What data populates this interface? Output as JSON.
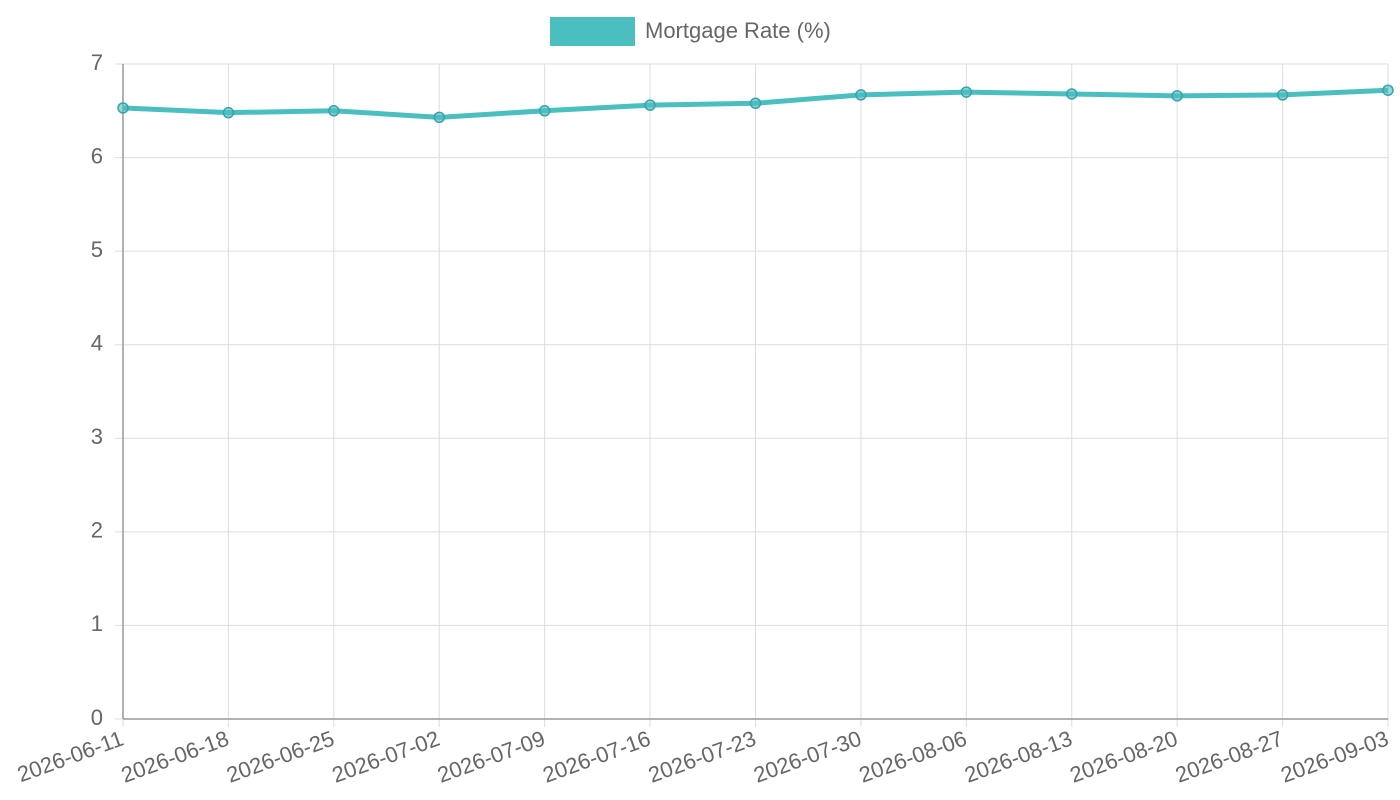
{
  "chart_data": {
    "type": "line",
    "categories": [
      "2026-06-11",
      "2026-06-18",
      "2026-06-25",
      "2026-07-02",
      "2026-07-09",
      "2026-07-16",
      "2026-07-23",
      "2026-07-30",
      "2026-08-06",
      "2026-08-13",
      "2026-08-20",
      "2026-08-27",
      "2026-09-03"
    ],
    "series": [
      {
        "name": "Mortgage Rate (%)",
        "color": "#4bbfbf",
        "values": [
          6.53,
          6.48,
          6.5,
          6.43,
          6.5,
          6.56,
          6.58,
          6.67,
          6.7,
          6.68,
          6.66,
          6.67,
          6.72
        ]
      }
    ],
    "ylim": [
      0,
      7
    ],
    "yticks": [
      0,
      1,
      2,
      3,
      4,
      5,
      6,
      7
    ],
    "grid": true,
    "legend": "top"
  }
}
